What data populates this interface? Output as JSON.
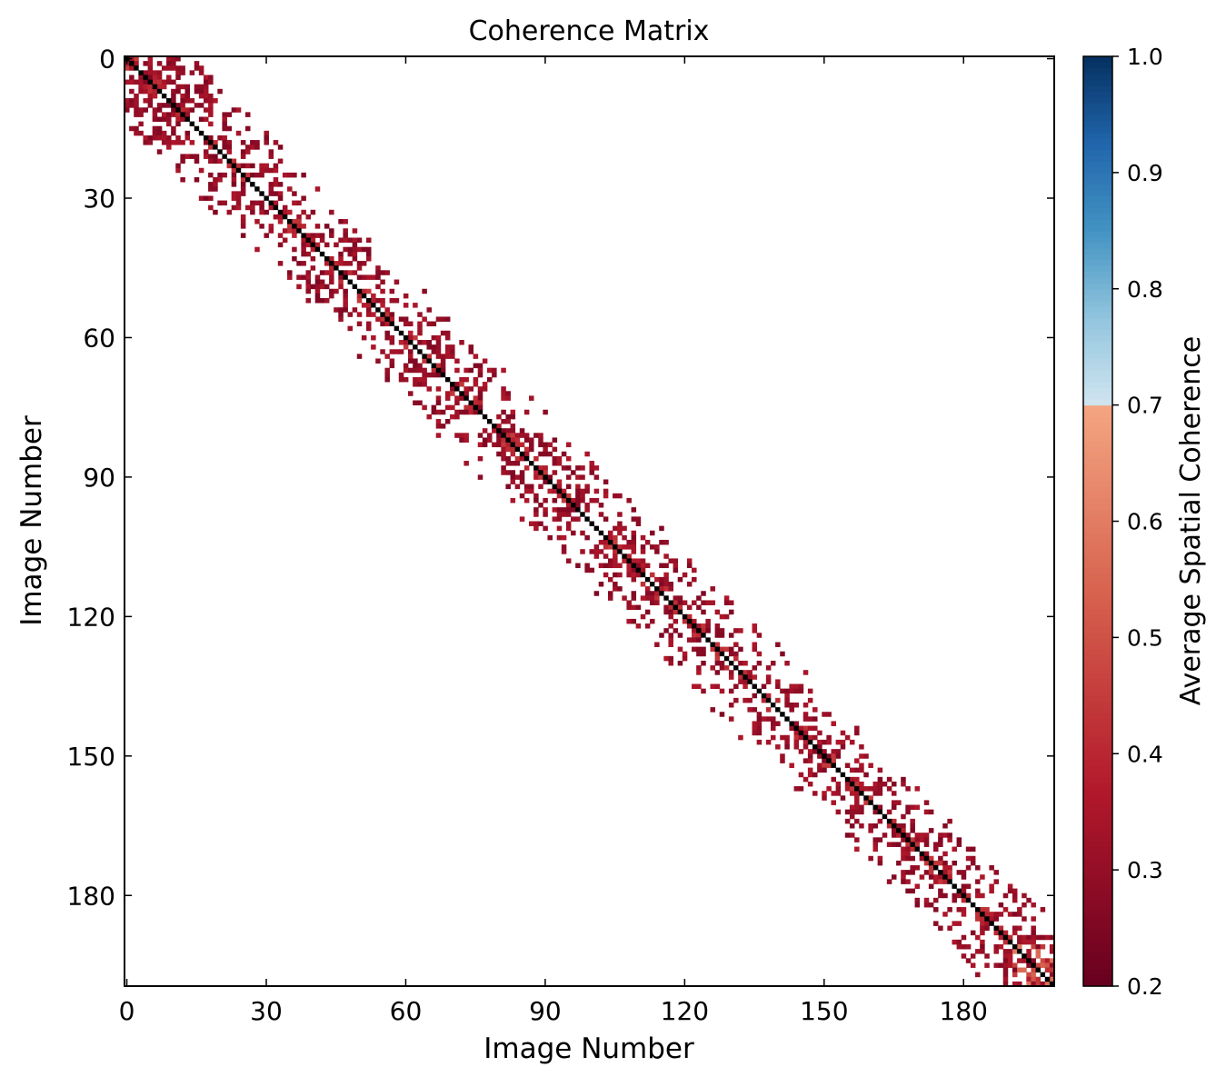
{
  "chart_data": {
    "type": "heatmap",
    "title": "Coherence Matrix",
    "xlabel": "Image Number",
    "ylabel": "Image Number",
    "n_images": 200,
    "x_ticks": [
      0,
      30,
      60,
      90,
      120,
      150,
      180
    ],
    "y_ticks": [
      0,
      30,
      60,
      90,
      120,
      150,
      180
    ],
    "x_tick_labels": [
      "0",
      "30",
      "60",
      "90",
      "120",
      "150",
      "180"
    ],
    "y_tick_labels": [
      "0",
      "30",
      "60",
      "90",
      "120",
      "150",
      "180"
    ],
    "xlim": [
      0,
      200
    ],
    "ylim": [
      200,
      0
    ],
    "colorbar": {
      "label": "Average Spatial Coherence",
      "range": [
        0.2,
        1.0
      ],
      "ticks": [
        0.2,
        0.3,
        0.4,
        0.5,
        0.6,
        0.7,
        0.8,
        0.9,
        1.0
      ],
      "tick_labels": [
        "0.2",
        "0.3",
        "0.4",
        "0.5",
        "0.6",
        "0.7",
        "0.8",
        "0.9",
        "1.0"
      ],
      "threshold": 0.7,
      "colors_below_threshold": [
        "#67001f",
        "#b2182b",
        "#d6604d",
        "#f4a582"
      ],
      "colors_above_threshold": [
        "#d1e5f0",
        "#92c5de",
        "#4393c3",
        "#2166ac",
        "#053061"
      ]
    },
    "diagonal_value": 1.0,
    "diagonal_color": "#000000",
    "band_half_width": 14,
    "typical_off_diagonal_coherence": [
      0.25,
      0.45
    ],
    "description_of_values": "Off-diagonal pairs within about 10-14 images of each other show sparse coherence values between 0.2 and 0.5; all other pairs are masked (white)."
  }
}
